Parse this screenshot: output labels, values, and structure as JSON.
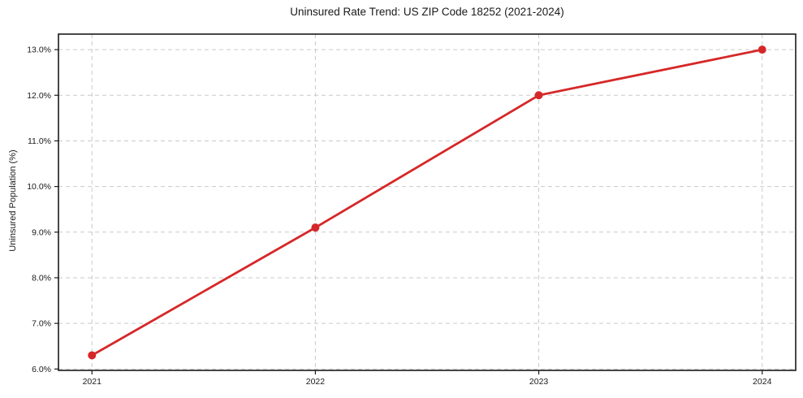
{
  "page": {
    "background": "#ffffff"
  },
  "chart_data": {
    "type": "line",
    "title": "Uninsured Rate Trend: US ZIP Code 18252 (2021-2024)",
    "xlabel": "",
    "ylabel": "Uninsured Population (%)",
    "categories": [
      2021,
      2022,
      2023,
      2024
    ],
    "series": [
      {
        "name": "Uninsured rate",
        "values": [
          6.3,
          9.1,
          12.0,
          13.0
        ],
        "color": "#d62728",
        "marker": "circle"
      }
    ],
    "yticks": [
      6.0,
      7.0,
      8.0,
      9.0,
      10.0,
      11.0,
      12.0,
      13.0
    ],
    "ytick_suffix": "%",
    "ylim": [
      5.97,
      13.34
    ],
    "xlim": [
      2020.85,
      2024.15
    ],
    "grid": true,
    "grid_style": "dashed",
    "grid_color": "#c9c9c9",
    "axis_color": "#1a1a1a",
    "legend": "none"
  }
}
